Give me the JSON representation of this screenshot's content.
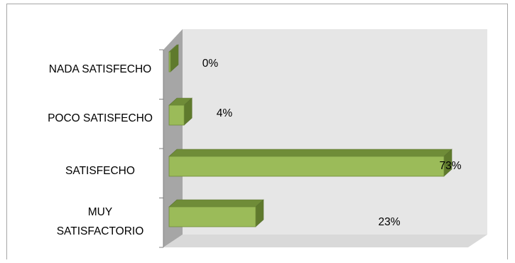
{
  "chart_data": {
    "type": "bar",
    "orientation": "horizontal",
    "style": "3d",
    "categories": [
      "NADA SATISFECHO",
      "POCO SATISFECHO",
      "SATISFECHO",
      "MUY SATISFACTORIO"
    ],
    "values": [
      0,
      4,
      73,
      23
    ],
    "data_labels": [
      "0%",
      "4%",
      "73%",
      "23%"
    ],
    "xlim": [
      0,
      73
    ],
    "title": "",
    "xlabel": "",
    "ylabel": "",
    "grid": false,
    "legend": "none",
    "colors": {
      "bar_front": "#9bbb59",
      "bar_top": "#6f8c38",
      "bar_side": "#5f7a2d",
      "back_wall": "#e6e6e6",
      "side_wall": "#a6a6a6",
      "floor": "#d9d9d9",
      "frame": "#a6a6a6"
    }
  }
}
